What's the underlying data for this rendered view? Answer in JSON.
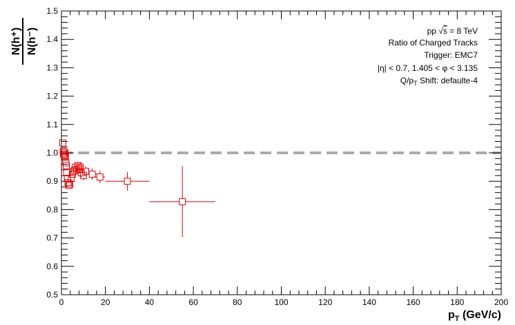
{
  "chart_data": {
    "type": "scatter",
    "title": "",
    "xlabel": "p_T (GeV/c)",
    "xlabel_main": "p",
    "xlabel_sub": "T",
    "xlabel_unit": " (GeV/c)",
    "ylabel_num": "N(h⁺)",
    "ylabel_den": "N(h⁻)",
    "xlim": [
      0,
      200
    ],
    "ylim": [
      0.5,
      1.5
    ],
    "x_ticks": [
      0,
      20,
      40,
      60,
      80,
      100,
      120,
      140,
      160,
      180,
      200
    ],
    "y_ticks": [
      0.5,
      0.6,
      0.7,
      0.8,
      0.9,
      1.0,
      1.1,
      1.2,
      1.3,
      1.4,
      1.5
    ],
    "x_tick_labels": [
      "0",
      "20",
      "40",
      "60",
      "80",
      "100",
      "120",
      "140",
      "160",
      "180",
      "200"
    ],
    "y_tick_labels": [
      "0.5",
      "0.6",
      "0.7",
      "0.8",
      "0.9",
      "1.0",
      "1.1",
      "1.2",
      "1.3",
      "1.4",
      "1.5"
    ],
    "grid": false,
    "reference_line": {
      "y": 1.0,
      "style": "dashed",
      "color": "#aaaaaa"
    },
    "marker_color": "#dd0000",
    "annotations": {
      "line1_prefix": "pp  ",
      "line1_sqrt": "√",
      "line1_s": "s",
      "line1_suffix": " = 8 TeV",
      "line2": "Ratio of Charged Tracks",
      "line3": "Trigger: EMC7",
      "line4": "|η| < 0.7, 1.405 < φ < 3.135",
      "line5_prefix": "Q/p",
      "line5_sub": "T",
      "line5_suffix": " Shift: defaulte-4"
    },
    "series": [
      {
        "points": [
          {
            "x": 0.6,
            "y": 1.035,
            "xerr": 0.1,
            "yerr": 0.005
          },
          {
            "x": 0.8,
            "y": 1.005,
            "xerr": 0.1,
            "yerr": 0.005
          },
          {
            "x": 1.0,
            "y": 0.995,
            "xerr": 0.1,
            "yerr": 0.005
          },
          {
            "x": 1.2,
            "y": 1.0,
            "xerr": 0.1,
            "yerr": 0.005
          },
          {
            "x": 1.4,
            "y": 0.99,
            "xerr": 0.1,
            "yerr": 0.005
          },
          {
            "x": 1.6,
            "y": 1.0,
            "xerr": 0.1,
            "yerr": 0.005
          },
          {
            "x": 1.8,
            "y": 0.985,
            "xerr": 0.1,
            "yerr": 0.006
          },
          {
            "x": 2.0,
            "y": 0.965,
            "xerr": 0.1,
            "yerr": 0.006
          },
          {
            "x": 2.2,
            "y": 0.955,
            "xerr": 0.1,
            "yerr": 0.007
          },
          {
            "x": 2.4,
            "y": 0.93,
            "xerr": 0.1,
            "yerr": 0.008
          },
          {
            "x": 2.7,
            "y": 0.91,
            "xerr": 0.15,
            "yerr": 0.008
          },
          {
            "x": 3.0,
            "y": 0.895,
            "xerr": 0.15,
            "yerr": 0.009
          },
          {
            "x": 3.4,
            "y": 0.885,
            "xerr": 0.2,
            "yerr": 0.01
          },
          {
            "x": 3.8,
            "y": 0.89,
            "xerr": 0.2,
            "yerr": 0.01
          },
          {
            "x": 4.5,
            "y": 0.91,
            "xerr": 0.25,
            "yerr": 0.011
          },
          {
            "x": 5.0,
            "y": 0.925,
            "xerr": 0.25,
            "yerr": 0.012
          },
          {
            "x": 5.5,
            "y": 0.935,
            "xerr": 0.25,
            "yerr": 0.012
          },
          {
            "x": 6.0,
            "y": 0.94,
            "xerr": 0.25,
            "yerr": 0.013
          },
          {
            "x": 6.5,
            "y": 0.95,
            "xerr": 0.25,
            "yerr": 0.013
          },
          {
            "x": 7.0,
            "y": 0.94,
            "xerr": 0.25,
            "yerr": 0.014
          },
          {
            "x": 7.5,
            "y": 0.955,
            "xerr": 0.25,
            "yerr": 0.014
          },
          {
            "x": 8.0,
            "y": 0.945,
            "xerr": 0.25,
            "yerr": 0.015
          },
          {
            "x": 8.5,
            "y": 0.95,
            "xerr": 0.25,
            "yerr": 0.016
          },
          {
            "x": 9.0,
            "y": 0.93,
            "xerr": 0.5,
            "yerr": 0.016
          },
          {
            "x": 10.0,
            "y": 0.92,
            "xerr": 0.5,
            "yerr": 0.017
          },
          {
            "x": 11.0,
            "y": 0.935,
            "xerr": 1.0,
            "yerr": 0.018
          },
          {
            "x": 14.0,
            "y": 0.925,
            "xerr": 2.0,
            "yerr": 0.02
          },
          {
            "x": 17.5,
            "y": 0.915,
            "xerr": 2.5,
            "yerr": 0.022
          },
          {
            "x": 30.0,
            "y": 0.9,
            "xerr": 10.0,
            "yerr": 0.033
          },
          {
            "x": 55.0,
            "y": 0.828,
            "xerr": 15.0,
            "yerr": 0.125
          }
        ]
      }
    ]
  }
}
